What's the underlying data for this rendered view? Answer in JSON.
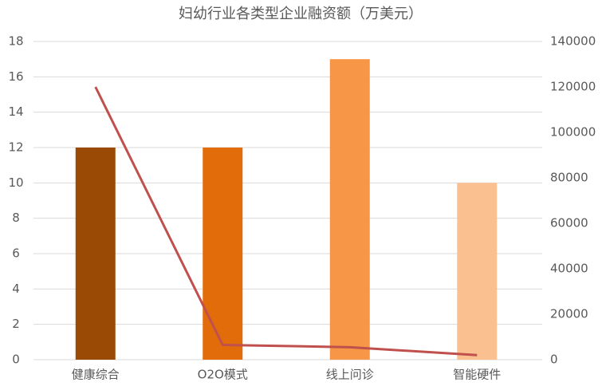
{
  "chart_data": {
    "type": "bar",
    "title": "妇幼行业各类型企业融资额（万美元）",
    "categories": [
      "健康综合",
      "O2O模式",
      "线上问诊",
      "智能硬件"
    ],
    "series": [
      {
        "type": "bar",
        "values": [
          12,
          12,
          17,
          10
        ],
        "colors": [
          "#9a4a05",
          "#e36c0a",
          "#f79646",
          "#fac090"
        ]
      },
      {
        "type": "line",
        "axis": "y2",
        "values": [
          120000,
          6500,
          5500,
          2000
        ],
        "color": "#c0504d"
      }
    ],
    "ylim": [
      0,
      18
    ],
    "yticks": [
      0,
      2,
      4,
      6,
      8,
      10,
      12,
      14,
      16,
      18
    ],
    "y2lim": [
      0,
      140000
    ],
    "y2ticks": [
      0,
      20000,
      40000,
      60000,
      80000,
      100000,
      120000,
      140000
    ],
    "grid": true
  }
}
